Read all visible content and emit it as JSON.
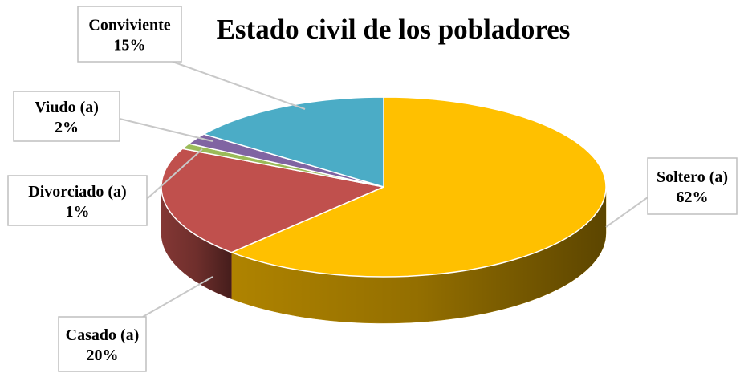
{
  "chart_data": {
    "type": "pie",
    "style": "3d",
    "title": "Estado civil de los pobladores",
    "slices": [
      {
        "label": "Soltero (a)",
        "value": 62,
        "value_label": "62%",
        "color": "#FFC000"
      },
      {
        "label": "Casado (a)",
        "value": 20,
        "value_label": "20%",
        "color": "#C0504D"
      },
      {
        "label": "Divorciado (a)",
        "value": 1,
        "value_label": "1%",
        "color": "#9BBB59"
      },
      {
        "label": "Viudo (a)",
        "value": 2,
        "value_label": "2%",
        "color": "#8064A2"
      },
      {
        "label": "Conviviente",
        "value": 15,
        "value_label": "15%",
        "color": "#4BACC6"
      }
    ],
    "start_angle_deg": 0,
    "direction": "clockwise",
    "data_labels": "callouts",
    "legend": "none"
  }
}
